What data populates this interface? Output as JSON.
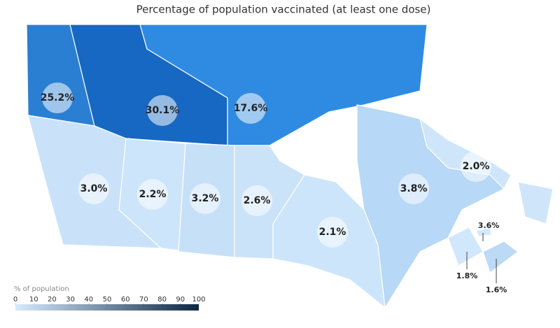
{
  "title": "Percentage of population vaccinated (at least one dose)",
  "regions": [
    {
      "value": 25.2,
      "label": "25.2%",
      "color": "#2b7fd3"
    },
    {
      "value": 30.1,
      "label": "30.1%",
      "color": "#1668c2"
    },
    {
      "value": 17.6,
      "label": "17.6%",
      "color": "#2f8be2"
    },
    {
      "value": 3.0,
      "label": "3.0%",
      "color": "#c9e2f9"
    },
    {
      "value": 2.2,
      "label": "2.2%",
      "color": "#cde5fa"
    },
    {
      "value": 3.2,
      "label": "3.2%",
      "color": "#c6e0f8"
    },
    {
      "value": 2.6,
      "label": "2.6%",
      "color": "#cbe3f9"
    },
    {
      "value": 2.1,
      "label": "2.1%",
      "color": "#cde5fa"
    },
    {
      "value": 3.8,
      "label": "3.8%",
      "color": "#b7d8f6"
    },
    {
      "value": 2.0,
      "label": "2.0%",
      "color": "#cfe6fa"
    },
    {
      "value": 3.6,
      "label": "3.6%",
      "color": "#bcdaf6"
    },
    {
      "value": 1.8,
      "label": "1.8%",
      "color": "#d1e7fb"
    },
    {
      "value": 1.6,
      "label": "1.6%",
      "color": "#d3e8fb"
    }
  ],
  "legend": {
    "title": "% of population",
    "ticks": [
      0,
      10,
      20,
      30,
      40,
      50,
      60,
      70,
      80,
      90,
      100
    ],
    "colors": [
      "#d8ebfd",
      "#0b2744"
    ]
  }
}
